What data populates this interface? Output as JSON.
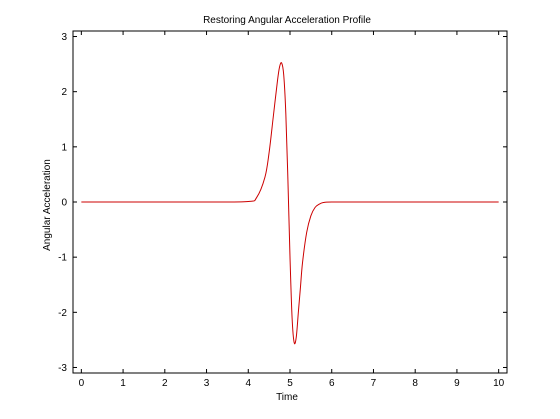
{
  "chart_data": {
    "type": "line",
    "title": "Restoring Angular Acceleration Profile",
    "xlabel": "Time",
    "ylabel": "Angular Acceleration",
    "xlim": [
      -0.2,
      10.2
    ],
    "ylim": [
      -3.1,
      3.1
    ],
    "xticks": [
      0,
      1,
      2,
      3,
      4,
      5,
      6,
      7,
      8,
      9,
      10
    ],
    "yticks": [
      -3,
      -2,
      -1,
      0,
      1,
      2,
      3
    ],
    "grid": false,
    "legend": "none",
    "series": [
      {
        "color": "#cc0000",
        "x": [
          0,
          1,
          2,
          3,
          4,
          4.2,
          4.4,
          4.5,
          4.6,
          4.7,
          4.75,
          4.8,
          4.85,
          4.9,
          4.95,
          5.0,
          5.05,
          5.1,
          5.15,
          5.2,
          5.25,
          5.3,
          5.4,
          5.5,
          5.6,
          5.7,
          5.8,
          6,
          7,
          8,
          9,
          10
        ],
        "y": [
          0,
          0,
          0,
          0,
          0.01,
          0.08,
          0.45,
          0.9,
          1.55,
          2.2,
          2.45,
          2.52,
          2.3,
          1.6,
          0.4,
          -1.0,
          -2.1,
          -2.55,
          -2.45,
          -2.0,
          -1.55,
          -1.1,
          -0.55,
          -0.25,
          -0.1,
          -0.04,
          -0.01,
          0,
          0,
          0,
          0,
          0
        ]
      }
    ]
  }
}
